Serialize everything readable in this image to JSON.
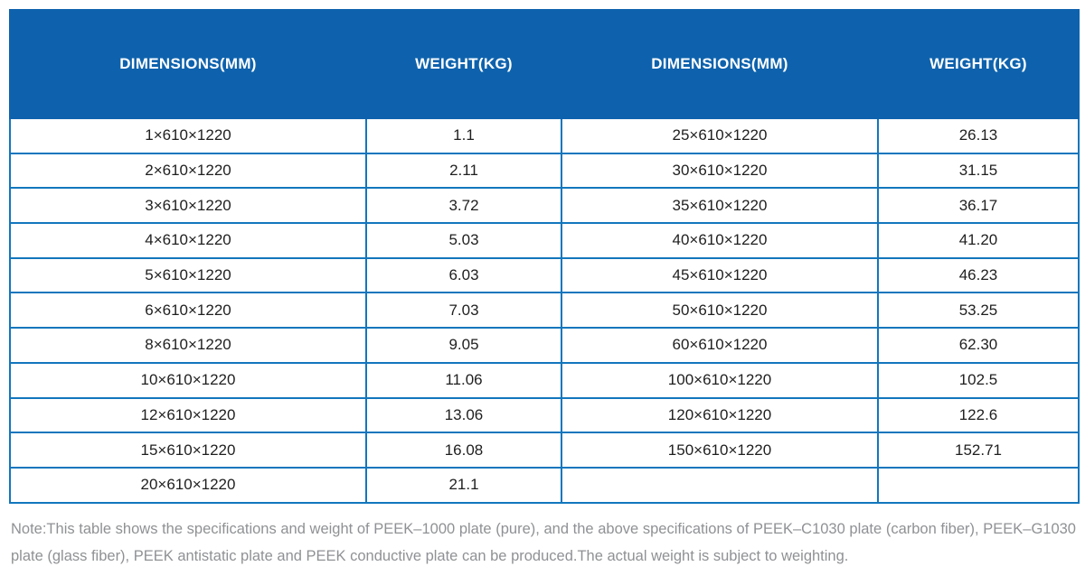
{
  "chart_data": {
    "type": "table",
    "title": "",
    "columns": [
      "DIMENSIONS(MM)",
      "WEIGHT(KG)",
      "DIMENSIONS(MM)",
      "WEIGHT(KG)"
    ],
    "rows": [
      [
        "1×610×1220",
        "1.1",
        "25×610×1220",
        "26.13"
      ],
      [
        "2×610×1220",
        "2.11",
        "30×610×1220",
        "31.15"
      ],
      [
        "3×610×1220",
        "3.72",
        "35×610×1220",
        "36.17"
      ],
      [
        "4×610×1220",
        "5.03",
        "40×610×1220",
        "41.20"
      ],
      [
        "5×610×1220",
        "6.03",
        "45×610×1220",
        "46.23"
      ],
      [
        "6×610×1220",
        "7.03",
        "50×610×1220",
        "53.25"
      ],
      [
        "8×610×1220",
        "9.05",
        "60×610×1220",
        "62.30"
      ],
      [
        "10×610×1220",
        "11.06",
        "100×610×1220",
        "102.5"
      ],
      [
        "12×610×1220",
        "13.06",
        "120×610×1220",
        "122.6"
      ],
      [
        "15×610×1220",
        "16.08",
        "150×610×1220",
        "152.71"
      ],
      [
        "20×610×1220",
        "21.1",
        "",
        ""
      ]
    ]
  },
  "note": {
    "text": "Note:This table shows the specifications and weight of PEEK–1000 plate (pure), and the above specifications of PEEK–C1030 plate (carbon fiber), PEEK–G1030 plate (glass fiber), PEEK antistatic plate and PEEK conductive plate can be produced.The actual weight is subject to weighting."
  },
  "colors": {
    "header_bg": "#0e62ad",
    "header_text": "#ffffff",
    "border": "#1276bd",
    "body_text": "#1f1f1f",
    "note_text": "#8f9194",
    "page_bg": "#ffffff"
  }
}
